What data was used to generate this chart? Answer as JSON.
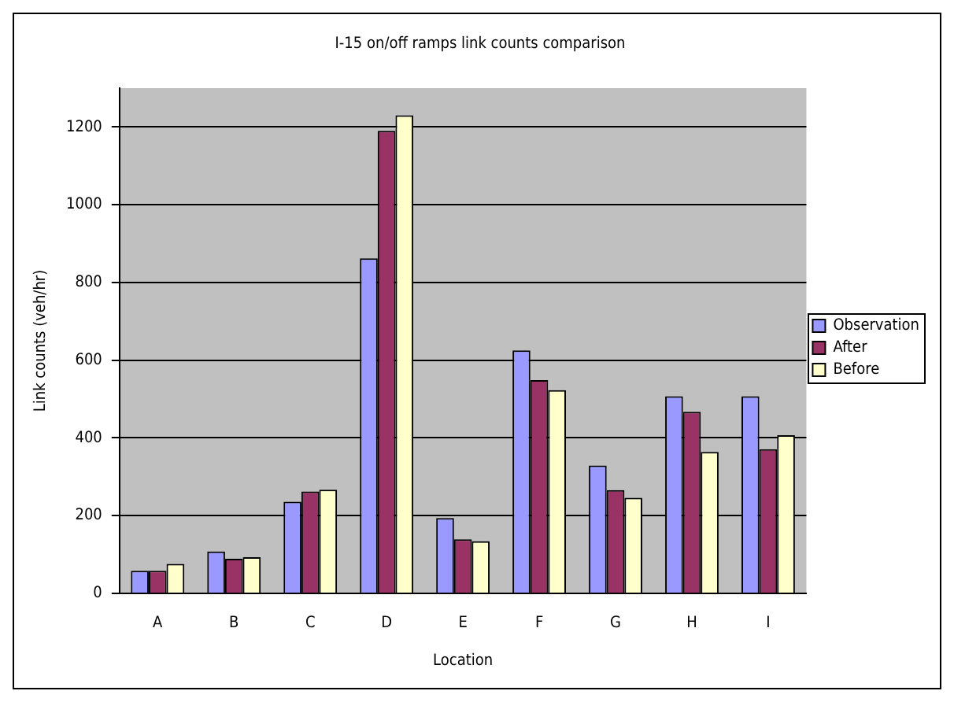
{
  "chart_data": {
    "type": "bar",
    "title": "I-15 on/off ramps link counts comparison",
    "xlabel": "Location",
    "ylabel": "Link counts (veh/hr)",
    "categories": [
      "A",
      "B",
      "C",
      "D",
      "E",
      "F",
      "G",
      "H",
      "I"
    ],
    "series": [
      {
        "name": "Observation",
        "color": "#9999ff",
        "values": [
          58,
          108,
          236,
          862,
          194,
          625,
          329,
          507,
          507
        ]
      },
      {
        "name": "After",
        "color": "#993366",
        "values": [
          58,
          89,
          262,
          1190,
          139,
          549,
          266,
          467,
          371
        ]
      },
      {
        "name": "Before",
        "color": "#ffffcc",
        "values": [
          76,
          93,
          267,
          1230,
          134,
          523,
          246,
          364,
          407
        ]
      }
    ],
    "ylim": [
      0,
      1300
    ],
    "yticks": [
      0,
      200,
      400,
      600,
      800,
      1000,
      1200
    ],
    "grid": "y",
    "legend": "right"
  }
}
